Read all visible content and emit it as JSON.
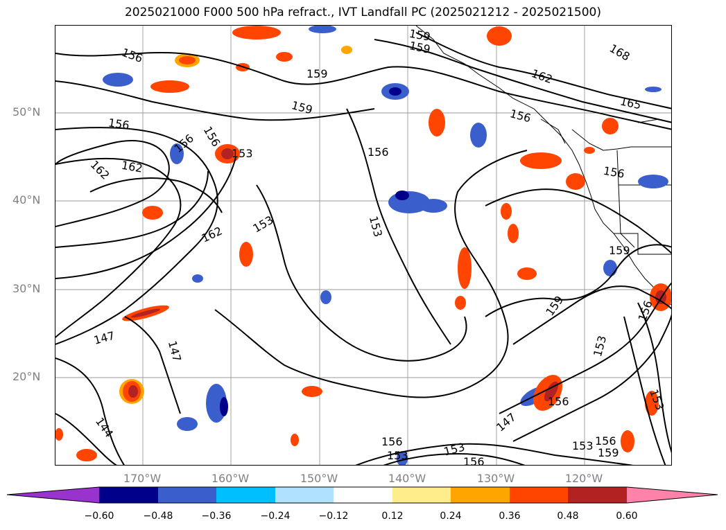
{
  "title": "2025021000 F000 500 hPa refract., IVT Landfall PC (2025021212 - 2025021500)",
  "lat_labels": [
    "50°N",
    "40°N",
    "30°N",
    "20°N"
  ],
  "lon_labels": [
    "170°W",
    "160°W",
    "150°W",
    "140°W",
    "130°W",
    "120°W"
  ],
  "colorbar": {
    "tick_labels": [
      "−0.60",
      "−0.48",
      "−0.36",
      "−0.24",
      "−0.12",
      "0.12",
      "0.24",
      "0.36",
      "0.48",
      "0.60"
    ],
    "colors": [
      "#9a32cd",
      "#00008b",
      "#3a5fcd",
      "#00bfff",
      "#b0e2ff",
      "#ffffff",
      "#ffec8b",
      "#ffa500",
      "#ff4500",
      "#b22222",
      "#ff82ab"
    ]
  },
  "contour_labels": [
    {
      "text": "156"
    },
    {
      "text": "159"
    },
    {
      "text": "159"
    },
    {
      "text": "159"
    },
    {
      "text": "156"
    },
    {
      "text": "162"
    },
    {
      "text": "168"
    },
    {
      "text": "165"
    },
    {
      "text": "159"
    },
    {
      "text": "156"
    },
    {
      "text": "156"
    },
    {
      "text": "153"
    },
    {
      "text": "162"
    },
    {
      "text": "162"
    },
    {
      "text": "156"
    },
    {
      "text": "153"
    },
    {
      "text": "156"
    },
    {
      "text": "153"
    },
    {
      "text": "162"
    },
    {
      "text": "159"
    },
    {
      "text": "156"
    },
    {
      "text": "159"
    },
    {
      "text": "153"
    },
    {
      "text": "147"
    },
    {
      "text": "147"
    },
    {
      "text": "144"
    },
    {
      "text": "156"
    },
    {
      "text": "147"
    },
    {
      "text": "156"
    },
    {
      "text": "153"
    },
    {
      "text": "156"
    },
    {
      "text": "153"
    },
    {
      "text": "156"
    },
    {
      "text": "159"
    },
    {
      "text": "153"
    },
    {
      "text": "156"
    },
    {
      "text": "153"
    }
  ]
}
